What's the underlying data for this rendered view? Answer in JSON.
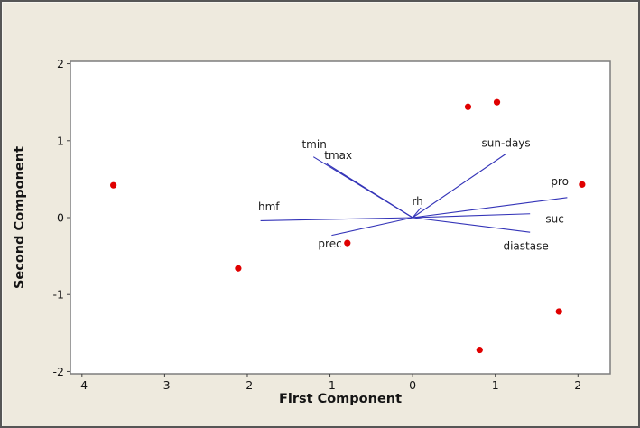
{
  "window": {
    "background": "#eeeade",
    "frame_color": "#565656"
  },
  "chart_data": {
    "type": "scatter",
    "subtype": "pca-biplot",
    "title": "",
    "xlabel": "First Component",
    "ylabel": "Second Component",
    "xlim": [
      -4.14,
      2.39
    ],
    "ylim": [
      -2.03,
      2.03
    ],
    "x_ticks": [
      -4,
      -3,
      -2,
      -1,
      0,
      1,
      2
    ],
    "y_ticks": [
      2,
      1,
      0,
      -1,
      -2
    ],
    "grid": false,
    "legend": false,
    "points": [
      {
        "x": -3.62,
        "y": 0.42
      },
      {
        "x": -2.11,
        "y": -0.66
      },
      {
        "x": -0.79,
        "y": -0.33
      },
      {
        "x": 0.67,
        "y": 1.44
      },
      {
        "x": 1.02,
        "y": 1.5
      },
      {
        "x": 2.05,
        "y": 0.43
      },
      {
        "x": 1.77,
        "y": -1.22
      },
      {
        "x": 0.81,
        "y": -1.72
      }
    ],
    "vectors": [
      {
        "name": "tmin",
        "x": -1.2,
        "y": 0.79,
        "label_x": -1.19,
        "label_y": 0.95
      },
      {
        "name": "tmax",
        "x": -1.04,
        "y": 0.7,
        "label_x": -0.9,
        "label_y": 0.81
      },
      {
        "name": "sun-days",
        "x": 1.13,
        "y": 0.83,
        "label_x": 1.13,
        "label_y": 0.97
      },
      {
        "name": "rh",
        "x": 0.1,
        "y": 0.13,
        "label_x": 0.06,
        "label_y": 0.21
      },
      {
        "name": "hmf",
        "x": -1.84,
        "y": -0.04,
        "label_x": -1.74,
        "label_y": 0.14
      },
      {
        "name": "prec",
        "x": -0.98,
        "y": -0.23,
        "label_x": -1.0,
        "label_y": -0.34
      },
      {
        "name": "pro",
        "x": 1.87,
        "y": 0.26,
        "label_x": 1.78,
        "label_y": 0.47
      },
      {
        "name": "suc",
        "x": 1.42,
        "y": 0.05,
        "label_x": 1.72,
        "label_y": -0.02
      },
      {
        "name": "diastase",
        "x": 1.42,
        "y": -0.19,
        "label_x": 1.37,
        "label_y": -0.37
      }
    ],
    "colors": {
      "point": "#e00000",
      "vector": "#3434b8",
      "plot_background": "#ffffff",
      "plot_border": "#7d7d7d",
      "tick": "#3f3f3f",
      "tick_label": "#141414",
      "vector_label": "#1c1c1c"
    }
  }
}
